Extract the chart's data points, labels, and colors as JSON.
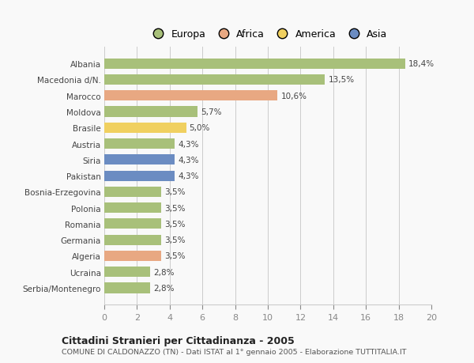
{
  "countries": [
    "Albania",
    "Macedonia d/N.",
    "Marocco",
    "Moldova",
    "Brasile",
    "Austria",
    "Siria",
    "Pakistan",
    "Bosnia-Erzegovina",
    "Polonia",
    "Romania",
    "Germania",
    "Algeria",
    "Ucraina",
    "Serbia/Montenegro"
  ],
  "values": [
    18.4,
    13.5,
    10.6,
    5.7,
    5.0,
    4.3,
    4.3,
    4.3,
    3.5,
    3.5,
    3.5,
    3.5,
    3.5,
    2.8,
    2.8
  ],
  "labels": [
    "18,4%",
    "13,5%",
    "10,6%",
    "5,7%",
    "5,0%",
    "4,3%",
    "4,3%",
    "4,3%",
    "3,5%",
    "3,5%",
    "3,5%",
    "3,5%",
    "3,5%",
    "2,8%",
    "2,8%"
  ],
  "colors": [
    "#a8c07a",
    "#a8c07a",
    "#e8a882",
    "#a8c07a",
    "#f0d060",
    "#a8c07a",
    "#6b8cc2",
    "#6b8cc2",
    "#a8c07a",
    "#a8c07a",
    "#a8c07a",
    "#a8c07a",
    "#e8a882",
    "#a8c07a",
    "#a8c07a"
  ],
  "legend": {
    "labels": [
      "Europa",
      "Africa",
      "America",
      "Asia"
    ],
    "colors": [
      "#a8c07a",
      "#e8a882",
      "#f0d060",
      "#6b8cc2"
    ]
  },
  "title": "Cittadini Stranieri per Cittadinanza - 2005",
  "subtitle": "COMUNE DI CALDONAZZO (TN) - Dati ISTAT al 1° gennaio 2005 - Elaborazione TUTTITALIA.IT",
  "xlim": [
    0,
    20
  ],
  "xticks": [
    0,
    2,
    4,
    6,
    8,
    10,
    12,
    14,
    16,
    18,
    20
  ],
  "background_color": "#f9f9f9",
  "bar_height": 0.65,
  "grid_color": "#cccccc"
}
